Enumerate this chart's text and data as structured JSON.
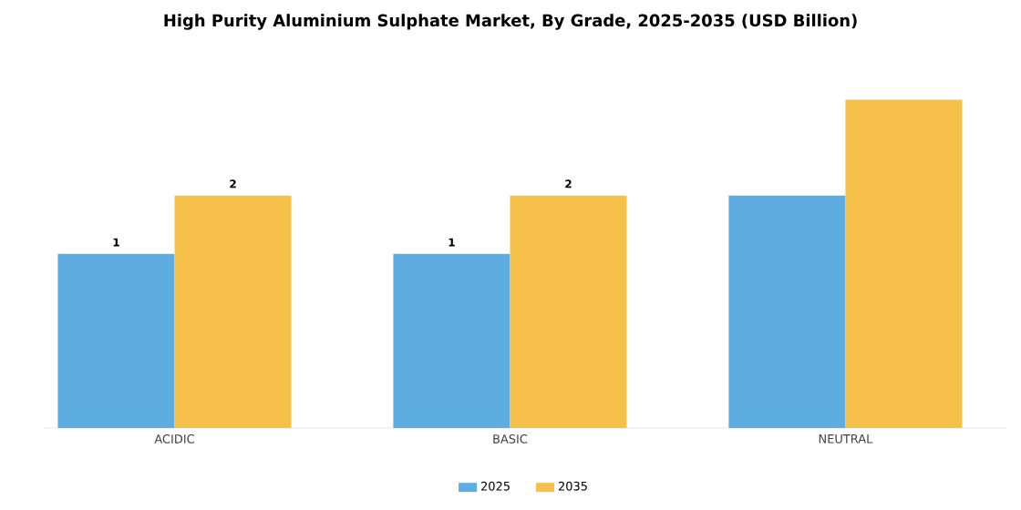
{
  "chart_data": {
    "type": "bar",
    "title": "High Purity Aluminium Sulphate Market, By Grade, 2025-2035 (USD Billion)",
    "categories": [
      "ACIDIC",
      "BASIC",
      "NEUTRAL"
    ],
    "tick_labels": "x",
    "legend": "bottom",
    "series": [
      {
        "name": "2025",
        "color": "#5dade2",
        "values": [
          1.49,
          1.49,
          1.99
        ],
        "value_labels": [
          "1",
          "1",
          null
        ]
      },
      {
        "name": "2035",
        "color": "#f7c04a",
        "values": [
          1.99,
          1.99,
          2.81
        ],
        "value_labels": [
          "2",
          "2",
          null
        ]
      }
    ]
  }
}
